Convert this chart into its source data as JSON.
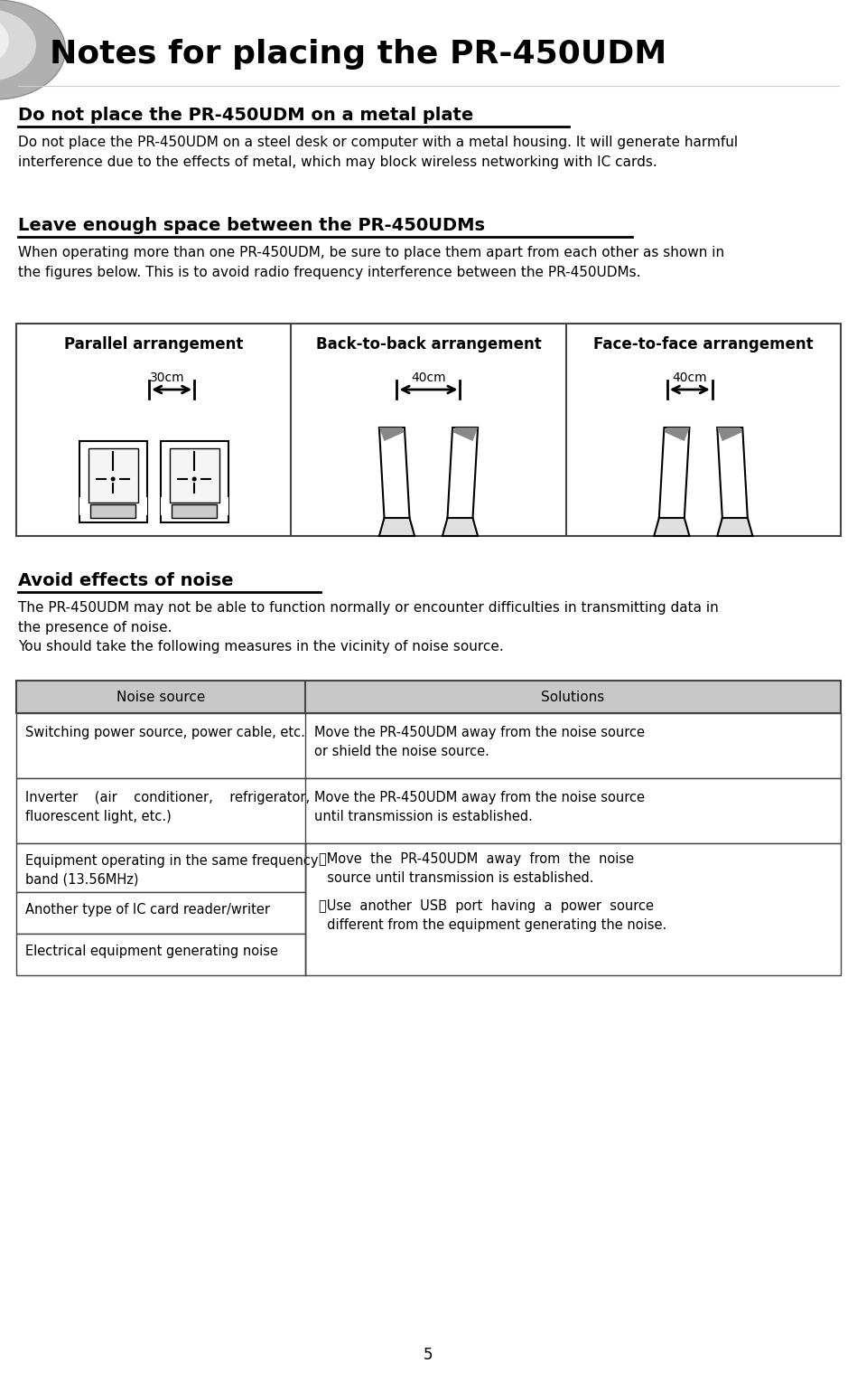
{
  "title": "Notes for placing the PR-450UDM",
  "bg_color": "#ffffff",
  "section1_heading": "Do not place the PR-450UDM on a metal plate",
  "section1_body": "Do not place the PR-450UDM on a steel desk or computer with a metal housing. It will generate harmful\ninterference due to the effects of metal, which may block wireless networking with IC cards.",
  "section2_heading": "Leave enough space between the PR-450UDMs",
  "section2_body": "When operating more than one PR-450UDM, be sure to place them apart from each other as shown in\nthe figures below. This is to avoid radio frequency interference between the PR-450UDMs.",
  "arrangement_labels": [
    "Parallel arrangement",
    "Back-to-back arrangement",
    "Face-to-face arrangement"
  ],
  "arrangement_distances": [
    "30cm",
    "40cm",
    "40cm"
  ],
  "section3_heading": "Avoid effects of noise",
  "section3_body": "The PR-450UDM may not be able to function normally or encounter difficulties in transmitting data in\nthe presence of noise.\nYou should take the following measures in the vicinity of noise source.",
  "table_header": [
    "Noise source",
    "Solutions"
  ],
  "table_row1_left": "Switching power source, power cable, etc.",
  "table_row1_right": "Move the PR-450UDM away from the noise source\nor shield the noise source.",
  "table_row2_left": "Inverter    (air    conditioner,    refrigerator,\nfluorescent light, etc.)",
  "table_row2_right": "Move the PR-450UDM away from the noise source\nuntil transmission is established.",
  "table_row3_left": "Equipment operating in the same frequency\nband (13.56MHz)",
  "table_row4_left": "Another type of IC card reader/writer",
  "table_row5_left": "Electrical equipment generating noise",
  "table_merged_right": "・Move  the  PR-450UDM  away  from  the  noise\n  source until transmission is established.\n\n・Use  another  USB  port  having  a  power  source\n  different from the equipment generating the noise.",
  "page_number": "5"
}
